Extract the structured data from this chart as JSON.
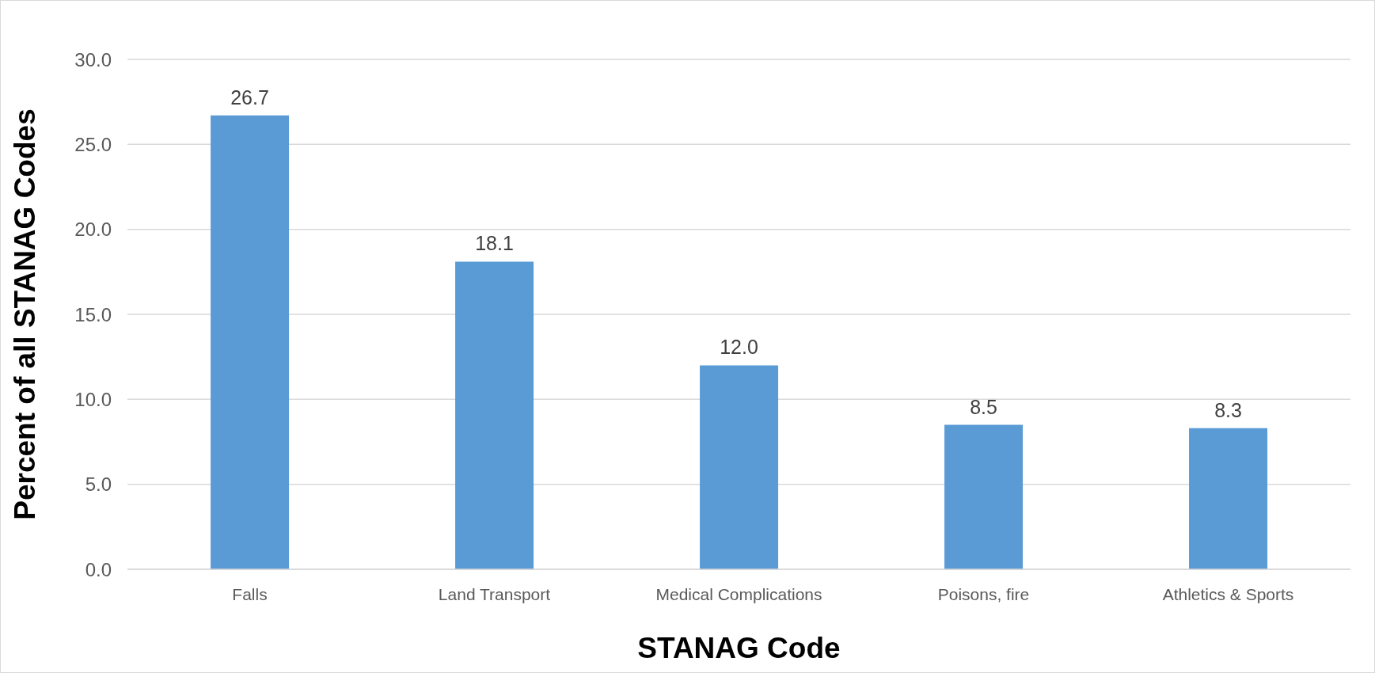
{
  "chart_data": {
    "type": "bar",
    "xlabel": "STANAG Code",
    "ylabel": "Percent of all STANAG Codes",
    "categories": [
      "Falls",
      "Land Transport",
      "Medical Complications",
      "Poisons, fire",
      "Athletics & Sports"
    ],
    "values": [
      26.7,
      18.1,
      12.0,
      8.5,
      8.3
    ],
    "color": "#5b9bd5",
    "ylim": [
      0,
      30
    ],
    "yticks": [
      {
        "value": 0,
        "label": "0.0"
      },
      {
        "value": 5,
        "label": "5.0"
      },
      {
        "value": 10,
        "label": "10.0"
      },
      {
        "value": 15,
        "label": "15.0"
      },
      {
        "value": 20,
        "label": "20.0"
      },
      {
        "value": 25,
        "label": "25.0"
      },
      {
        "value": 30,
        "label": "30.0"
      }
    ],
    "grid": "y",
    "data_labels": true,
    "value_labels": [
      "26.7",
      "18.1",
      "12.0",
      "8.5",
      "8.3"
    ]
  }
}
